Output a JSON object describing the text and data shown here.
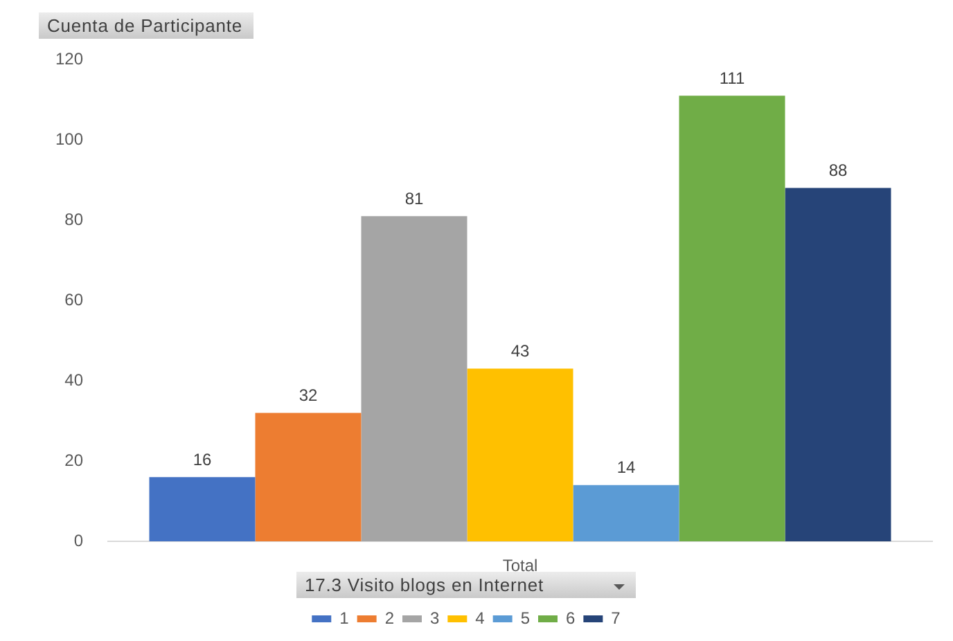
{
  "chart_data": {
    "type": "bar",
    "ylabel": "Cuenta de Participante",
    "legend_title": "17.3 Visito blogs en Internet",
    "categories": [
      "Total"
    ],
    "series": [
      {
        "name": "1",
        "color": "#4472c4",
        "values": [
          16
        ]
      },
      {
        "name": "2",
        "color": "#ed7d31",
        "values": [
          32
        ]
      },
      {
        "name": "3",
        "color": "#a5a5a5",
        "values": [
          81
        ]
      },
      {
        "name": "4",
        "color": "#ffc000",
        "values": [
          43
        ]
      },
      {
        "name": "5",
        "color": "#5b9bd5",
        "values": [
          14
        ]
      },
      {
        "name": "6",
        "color": "#70ad47",
        "values": [
          111
        ]
      },
      {
        "name": "7",
        "color": "#264478",
        "values": [
          88
        ]
      }
    ],
    "ylim": [
      0,
      120
    ],
    "yticks": [
      0,
      20,
      40,
      60,
      80,
      100,
      120
    ],
    "grid": false,
    "data_labels": true,
    "legend": "bottom"
  }
}
